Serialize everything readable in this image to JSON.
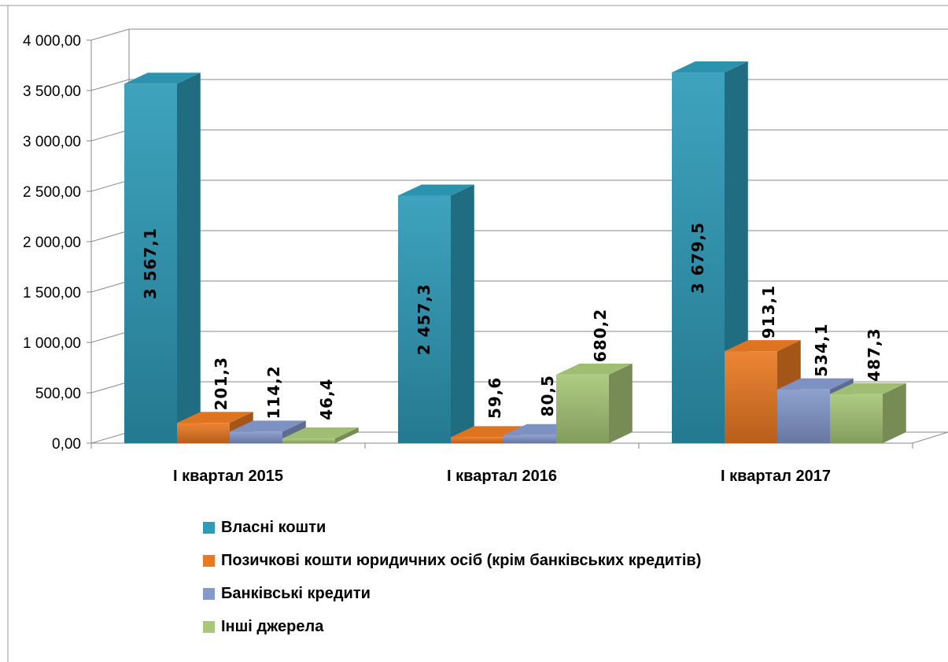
{
  "chart_data": {
    "type": "bar",
    "title": "",
    "xlabel": "",
    "ylabel": "",
    "ylim": [
      0,
      4000
    ],
    "yticks": [
      "0,00",
      "500,00",
      "1 000,00",
      "1 500,00",
      "2 000,00",
      "2 500,00",
      "3 000,00",
      "3 500,00",
      "4 000,00"
    ],
    "grid": true,
    "legend_position": "bottom",
    "categories": [
      "I квартал 2015",
      "I квартал 2016",
      "I квартал 2017"
    ],
    "series": [
      {
        "name": "Власні кошти",
        "color": "#2e9bb8",
        "values": [
          3567.1,
          2457.3,
          3679.5
        ],
        "labels": [
          "3 567,1",
          "2 457,3",
          "3 679,5"
        ]
      },
      {
        "name": "Позичкові кошти юридичних осіб (крім банківських кредитів)",
        "color": "#ea7a22",
        "values": [
          201.3,
          59.6,
          913.1
        ],
        "labels": [
          "201,3",
          "59,6",
          "913,1"
        ]
      },
      {
        "name": "Банківські кредити",
        "color": "#8499cc",
        "values": [
          114.2,
          80.5,
          534.1
        ],
        "labels": [
          "114,2",
          "80,5",
          "534,1"
        ]
      },
      {
        "name": "Інші джерела",
        "color": "#a8c878",
        "values": [
          46.4,
          680.2,
          487.3
        ],
        "labels": [
          "46,4",
          "680,2",
          "487,3"
        ]
      }
    ]
  }
}
